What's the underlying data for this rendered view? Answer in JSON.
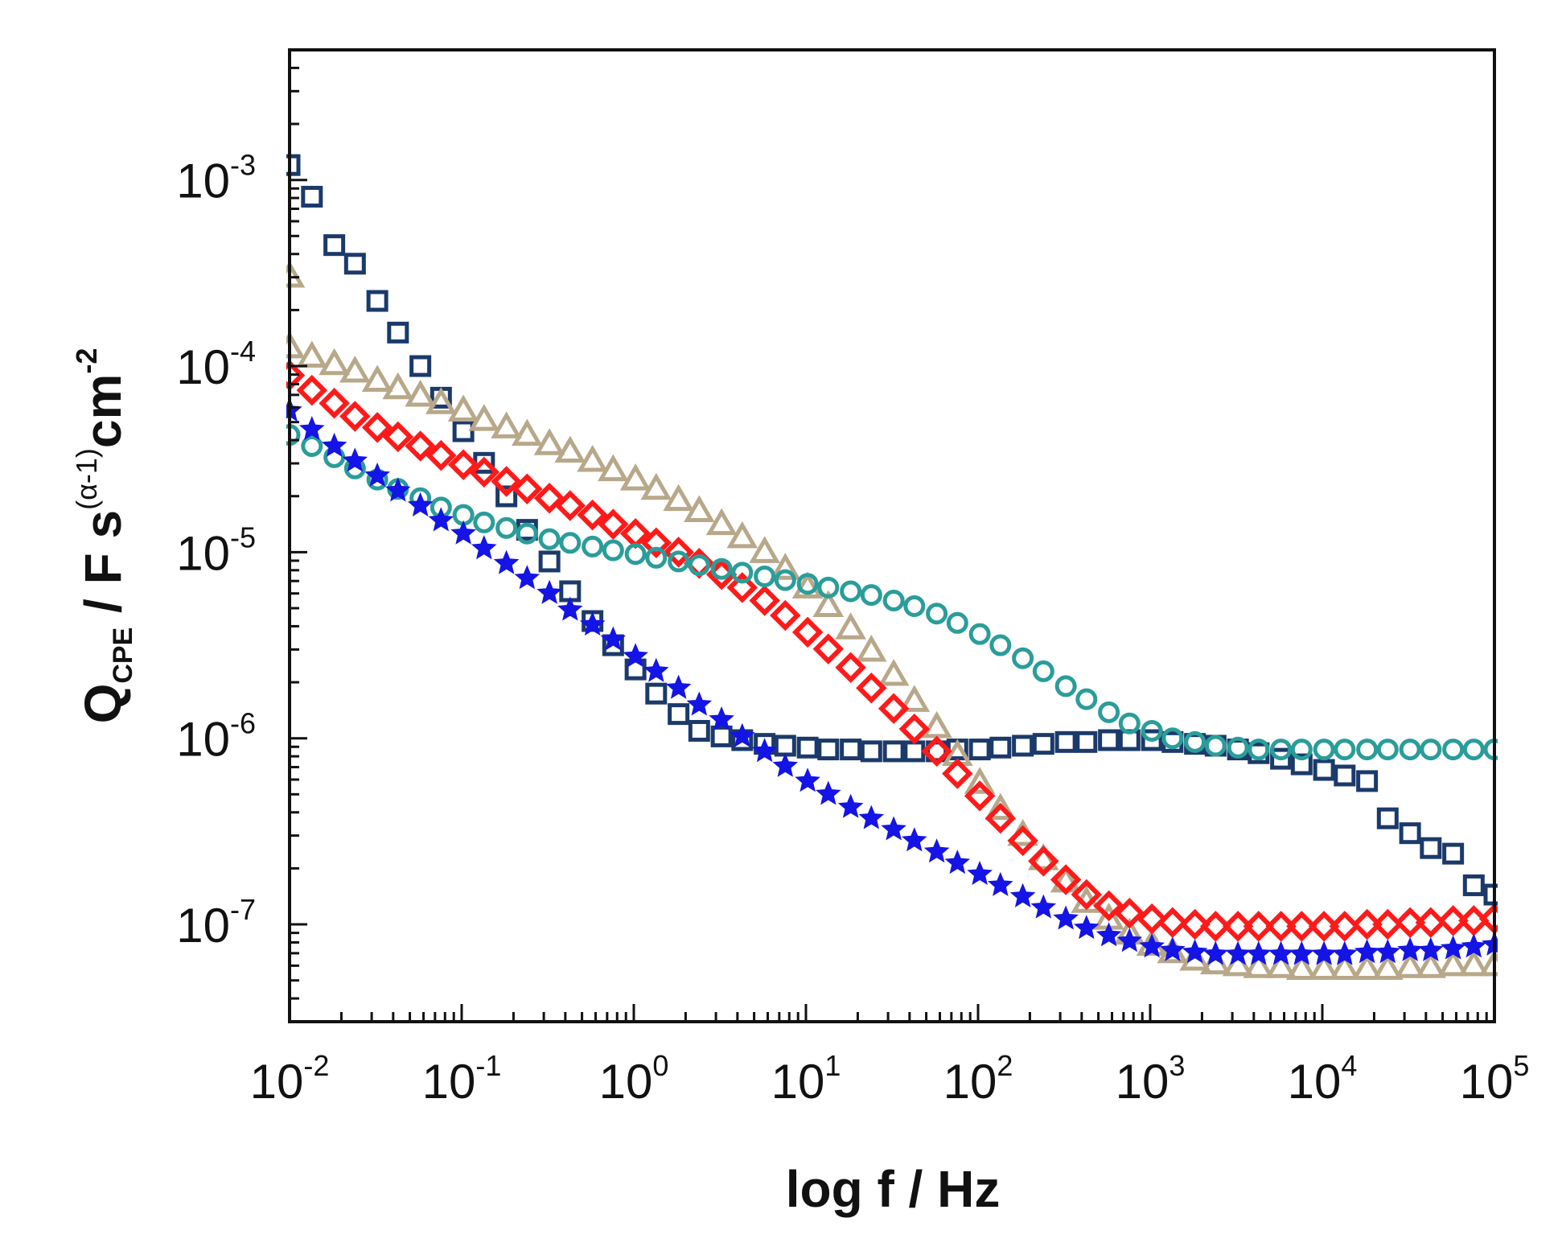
{
  "chart_data": {
    "type": "scatter",
    "title": "",
    "xlabel": "log f / Hz",
    "ylabel": {
      "q": "Q",
      "q_sub": "CPE",
      "mid": " / F s",
      "exp": "(α-1)",
      "cm": "cm",
      "cm_exp": "-2"
    },
    "xscale": "log",
    "yscale": "log",
    "xlim": [
      0.01,
      100000
    ],
    "ylim": [
      3e-08,
      0.005
    ],
    "x_ticks": [
      {
        "value": 0.01,
        "base": "10",
        "exp": "-2"
      },
      {
        "value": 0.1,
        "base": "10",
        "exp": "-1"
      },
      {
        "value": 1,
        "base": "10",
        "exp": "0"
      },
      {
        "value": 10,
        "base": "10",
        "exp": "1"
      },
      {
        "value": 100,
        "base": "10",
        "exp": "2"
      },
      {
        "value": 1000,
        "base": "10",
        "exp": "3"
      },
      {
        "value": 10000,
        "base": "10",
        "exp": "4"
      },
      {
        "value": 100000,
        "base": "10",
        "exp": "5"
      }
    ],
    "y_ticks": [
      {
        "value": 0.001,
        "base": "10",
        "exp": "-3"
      },
      {
        "value": 0.0001,
        "base": "10",
        "exp": "-4"
      },
      {
        "value": 1e-05,
        "base": "10",
        "exp": "-5"
      },
      {
        "value": 1e-06,
        "base": "10",
        "exp": "-6"
      },
      {
        "value": 1e-07,
        "base": "10",
        "exp": "-7"
      }
    ],
    "series": [
      {
        "name": "navy squares",
        "marker": "square",
        "color": "#1b3a6b",
        "points": [
          [
            -2,
            -2.92
          ],
          [
            -1.87,
            -3.09
          ],
          [
            -1.74,
            -3.35
          ],
          [
            -1.62,
            -3.45
          ],
          [
            -1.49,
            -3.65
          ],
          [
            -1.37,
            -3.82
          ],
          [
            -1.24,
            -4.0
          ],
          [
            -1.12,
            -4.17
          ],
          [
            -0.99,
            -4.35
          ],
          [
            -0.87,
            -4.52
          ],
          [
            -0.74,
            -4.7
          ],
          [
            -0.62,
            -4.88
          ],
          [
            -0.49,
            -5.05
          ],
          [
            -0.37,
            -5.21
          ],
          [
            -0.24,
            -5.37
          ],
          [
            -0.12,
            -5.5
          ],
          [
            0.01,
            -5.63
          ],
          [
            0.13,
            -5.76
          ],
          [
            0.26,
            -5.87
          ],
          [
            0.38,
            -5.96
          ],
          [
            0.51,
            -5.99
          ],
          [
            0.63,
            -6.01
          ],
          [
            0.76,
            -6.03
          ],
          [
            0.88,
            -6.04
          ],
          [
            1.01,
            -6.05
          ],
          [
            1.13,
            -6.06
          ],
          [
            1.26,
            -6.06
          ],
          [
            1.38,
            -6.07
          ],
          [
            1.51,
            -6.07
          ],
          [
            1.63,
            -6.07
          ],
          [
            1.76,
            -6.07
          ],
          [
            1.88,
            -6.06
          ],
          [
            2.01,
            -6.06
          ],
          [
            2.13,
            -6.05
          ],
          [
            2.26,
            -6.04
          ],
          [
            2.38,
            -6.03
          ],
          [
            2.51,
            -6.02
          ],
          [
            2.63,
            -6.02
          ],
          [
            2.76,
            -6.01
          ],
          [
            2.88,
            -6.01
          ],
          [
            3.01,
            -6.01
          ],
          [
            3.13,
            -6.02
          ],
          [
            3.26,
            -6.03
          ],
          [
            3.38,
            -6.04
          ],
          [
            3.51,
            -6.06
          ],
          [
            3.63,
            -6.08
          ],
          [
            3.76,
            -6.11
          ],
          [
            3.88,
            -6.14
          ],
          [
            4.01,
            -6.17
          ],
          [
            4.13,
            -6.2
          ],
          [
            4.26,
            -6.23
          ],
          [
            4.38,
            -6.43
          ],
          [
            4.51,
            -6.51
          ],
          [
            4.63,
            -6.59
          ],
          [
            4.76,
            -6.62
          ],
          [
            4.88,
            -6.79
          ],
          [
            5.0,
            -6.84
          ]
        ]
      },
      {
        "name": "tan triangles",
        "marker": "triangle",
        "color": "#b8a88a",
        "points": [
          [
            -2,
            -3.52
          ],
          [
            -2,
            -3.9
          ],
          [
            -1.87,
            -3.95
          ],
          [
            -1.74,
            -3.99
          ],
          [
            -1.62,
            -4.03
          ],
          [
            -1.49,
            -4.08
          ],
          [
            -1.37,
            -4.12
          ],
          [
            -1.24,
            -4.16
          ],
          [
            -1.12,
            -4.2
          ],
          [
            -0.99,
            -4.24
          ],
          [
            -0.87,
            -4.29
          ],
          [
            -0.74,
            -4.33
          ],
          [
            -0.62,
            -4.37
          ],
          [
            -0.49,
            -4.42
          ],
          [
            -0.37,
            -4.46
          ],
          [
            -0.24,
            -4.51
          ],
          [
            -0.12,
            -4.56
          ],
          [
            0.01,
            -4.61
          ],
          [
            0.13,
            -4.66
          ],
          [
            0.26,
            -4.72
          ],
          [
            0.38,
            -4.78
          ],
          [
            0.51,
            -4.85
          ],
          [
            0.63,
            -4.92
          ],
          [
            0.76,
            -5.0
          ],
          [
            0.88,
            -5.09
          ],
          [
            1.01,
            -5.19
          ],
          [
            1.13,
            -5.29
          ],
          [
            1.26,
            -5.41
          ],
          [
            1.38,
            -5.53
          ],
          [
            1.51,
            -5.66
          ],
          [
            1.63,
            -5.8
          ],
          [
            1.76,
            -5.94
          ],
          [
            1.88,
            -6.09
          ],
          [
            2.01,
            -6.24
          ],
          [
            2.13,
            -6.38
          ],
          [
            2.26,
            -6.52
          ],
          [
            2.38,
            -6.65
          ],
          [
            2.51,
            -6.77
          ],
          [
            2.63,
            -6.88
          ],
          [
            2.76,
            -6.97
          ],
          [
            2.88,
            -7.05
          ],
          [
            3.01,
            -7.11
          ],
          [
            3.13,
            -7.15
          ],
          [
            3.26,
            -7.19
          ],
          [
            3.38,
            -7.21
          ],
          [
            3.51,
            -7.22
          ],
          [
            3.63,
            -7.23
          ],
          [
            3.76,
            -7.23
          ],
          [
            3.88,
            -7.24
          ],
          [
            4.01,
            -7.24
          ],
          [
            4.13,
            -7.24
          ],
          [
            4.26,
            -7.24
          ],
          [
            4.38,
            -7.24
          ],
          [
            4.51,
            -7.23
          ],
          [
            4.63,
            -7.23
          ],
          [
            4.76,
            -7.22
          ],
          [
            4.88,
            -7.22
          ],
          [
            5.0,
            -7.22
          ]
        ]
      },
      {
        "name": "red diamonds",
        "marker": "diamond",
        "color": "#ff1a1a",
        "points": [
          [
            -2,
            -4.05
          ],
          [
            -1.87,
            -4.13
          ],
          [
            -1.74,
            -4.2
          ],
          [
            -1.62,
            -4.27
          ],
          [
            -1.49,
            -4.33
          ],
          [
            -1.37,
            -4.38
          ],
          [
            -1.24,
            -4.43
          ],
          [
            -1.12,
            -4.48
          ],
          [
            -0.99,
            -4.53
          ],
          [
            -0.87,
            -4.57
          ],
          [
            -0.74,
            -4.62
          ],
          [
            -0.62,
            -4.66
          ],
          [
            -0.49,
            -4.71
          ],
          [
            -0.37,
            -4.75
          ],
          [
            -0.24,
            -4.8
          ],
          [
            -0.12,
            -4.85
          ],
          [
            0.01,
            -4.9
          ],
          [
            0.13,
            -4.95
          ],
          [
            0.26,
            -5.0
          ],
          [
            0.38,
            -5.06
          ],
          [
            0.51,
            -5.12
          ],
          [
            0.63,
            -5.19
          ],
          [
            0.76,
            -5.26
          ],
          [
            0.88,
            -5.34
          ],
          [
            1.01,
            -5.43
          ],
          [
            1.13,
            -5.52
          ],
          [
            1.26,
            -5.62
          ],
          [
            1.38,
            -5.73
          ],
          [
            1.51,
            -5.84
          ],
          [
            1.63,
            -5.95
          ],
          [
            1.76,
            -6.07
          ],
          [
            1.88,
            -6.19
          ],
          [
            2.01,
            -6.31
          ],
          [
            2.13,
            -6.43
          ],
          [
            2.26,
            -6.55
          ],
          [
            2.38,
            -6.66
          ],
          [
            2.51,
            -6.76
          ],
          [
            2.63,
            -6.84
          ],
          [
            2.76,
            -6.9
          ],
          [
            2.88,
            -6.94
          ],
          [
            3.01,
            -6.97
          ],
          [
            3.13,
            -6.99
          ],
          [
            3.26,
            -7.0
          ],
          [
            3.38,
            -7.01
          ],
          [
            3.51,
            -7.01
          ],
          [
            3.63,
            -7.01
          ],
          [
            3.76,
            -7.01
          ],
          [
            3.88,
            -7.01
          ],
          [
            4.01,
            -7.01
          ],
          [
            4.13,
            -7.01
          ],
          [
            4.26,
            -7.0
          ],
          [
            4.38,
            -7.0
          ],
          [
            4.51,
            -6.99
          ],
          [
            4.63,
            -6.99
          ],
          [
            4.76,
            -6.98
          ],
          [
            4.88,
            -6.98
          ],
          [
            5.0,
            -6.97
          ]
        ]
      },
      {
        "name": "teal circles",
        "marker": "circle",
        "color": "#2a9d9a",
        "points": [
          [
            -2,
            -4.37
          ],
          [
            -1.87,
            -4.43
          ],
          [
            -1.74,
            -4.49
          ],
          [
            -1.62,
            -4.55
          ],
          [
            -1.49,
            -4.61
          ],
          [
            -1.37,
            -4.66
          ],
          [
            -1.24,
            -4.71
          ],
          [
            -1.12,
            -4.76
          ],
          [
            -0.99,
            -4.8
          ],
          [
            -0.87,
            -4.84
          ],
          [
            -0.74,
            -4.87
          ],
          [
            -0.62,
            -4.9
          ],
          [
            -0.49,
            -4.93
          ],
          [
            -0.37,
            -4.95
          ],
          [
            -0.24,
            -4.97
          ],
          [
            -0.12,
            -4.99
          ],
          [
            0.01,
            -5.01
          ],
          [
            0.13,
            -5.03
          ],
          [
            0.26,
            -5.05
          ],
          [
            0.38,
            -5.07
          ],
          [
            0.51,
            -5.09
          ],
          [
            0.63,
            -5.11
          ],
          [
            0.76,
            -5.13
          ],
          [
            0.88,
            -5.15
          ],
          [
            1.01,
            -5.17
          ],
          [
            1.13,
            -5.19
          ],
          [
            1.26,
            -5.21
          ],
          [
            1.38,
            -5.23
          ],
          [
            1.51,
            -5.26
          ],
          [
            1.63,
            -5.29
          ],
          [
            1.76,
            -5.33
          ],
          [
            1.88,
            -5.38
          ],
          [
            2.01,
            -5.44
          ],
          [
            2.13,
            -5.5
          ],
          [
            2.26,
            -5.57
          ],
          [
            2.38,
            -5.64
          ],
          [
            2.51,
            -5.72
          ],
          [
            2.63,
            -5.79
          ],
          [
            2.76,
            -5.86
          ],
          [
            2.88,
            -5.92
          ],
          [
            3.01,
            -5.96
          ],
          [
            3.13,
            -6.0
          ],
          [
            3.26,
            -6.02
          ],
          [
            3.38,
            -6.04
          ],
          [
            3.51,
            -6.05
          ],
          [
            3.63,
            -6.06
          ],
          [
            3.76,
            -6.06
          ],
          [
            3.88,
            -6.06
          ],
          [
            4.01,
            -6.06
          ],
          [
            4.13,
            -6.06
          ],
          [
            4.26,
            -6.06
          ],
          [
            4.38,
            -6.06
          ],
          [
            4.51,
            -6.06
          ],
          [
            4.63,
            -6.06
          ],
          [
            4.76,
            -6.06
          ],
          [
            4.88,
            -6.06
          ],
          [
            5.0,
            -6.06
          ]
        ]
      },
      {
        "name": "blue stars",
        "marker": "star",
        "color": "#1414e6",
        "points": [
          [
            -2,
            -4.24
          ],
          [
            -1.87,
            -4.34
          ],
          [
            -1.74,
            -4.43
          ],
          [
            -1.62,
            -4.51
          ],
          [
            -1.49,
            -4.59
          ],
          [
            -1.37,
            -4.67
          ],
          [
            -1.24,
            -4.75
          ],
          [
            -1.12,
            -4.83
          ],
          [
            -0.99,
            -4.9
          ],
          [
            -0.87,
            -4.98
          ],
          [
            -0.74,
            -5.06
          ],
          [
            -0.62,
            -5.14
          ],
          [
            -0.49,
            -5.22
          ],
          [
            -0.37,
            -5.31
          ],
          [
            -0.24,
            -5.39
          ],
          [
            -0.12,
            -5.47
          ],
          [
            0.01,
            -5.56
          ],
          [
            0.13,
            -5.64
          ],
          [
            0.26,
            -5.73
          ],
          [
            0.38,
            -5.82
          ],
          [
            0.51,
            -5.9
          ],
          [
            0.63,
            -5.99
          ],
          [
            0.76,
            -6.07
          ],
          [
            0.88,
            -6.15
          ],
          [
            1.01,
            -6.23
          ],
          [
            1.13,
            -6.3
          ],
          [
            1.26,
            -6.37
          ],
          [
            1.38,
            -6.43
          ],
          [
            1.51,
            -6.49
          ],
          [
            1.63,
            -6.55
          ],
          [
            1.76,
            -6.61
          ],
          [
            1.88,
            -6.67
          ],
          [
            2.01,
            -6.73
          ],
          [
            2.13,
            -6.79
          ],
          [
            2.26,
            -6.85
          ],
          [
            2.38,
            -6.91
          ],
          [
            2.51,
            -6.97
          ],
          [
            2.63,
            -7.02
          ],
          [
            2.76,
            -7.06
          ],
          [
            2.88,
            -7.09
          ],
          [
            3.01,
            -7.12
          ],
          [
            3.13,
            -7.14
          ],
          [
            3.26,
            -7.15
          ],
          [
            3.38,
            -7.16
          ],
          [
            3.51,
            -7.16
          ],
          [
            3.63,
            -7.16
          ],
          [
            3.76,
            -7.16
          ],
          [
            3.88,
            -7.16
          ],
          [
            4.01,
            -7.16
          ],
          [
            4.13,
            -7.16
          ],
          [
            4.26,
            -7.15
          ],
          [
            4.38,
            -7.15
          ],
          [
            4.51,
            -7.14
          ],
          [
            4.63,
            -7.14
          ],
          [
            4.76,
            -7.13
          ],
          [
            4.88,
            -7.12
          ],
          [
            5.0,
            -7.11
          ]
        ]
      }
    ]
  }
}
